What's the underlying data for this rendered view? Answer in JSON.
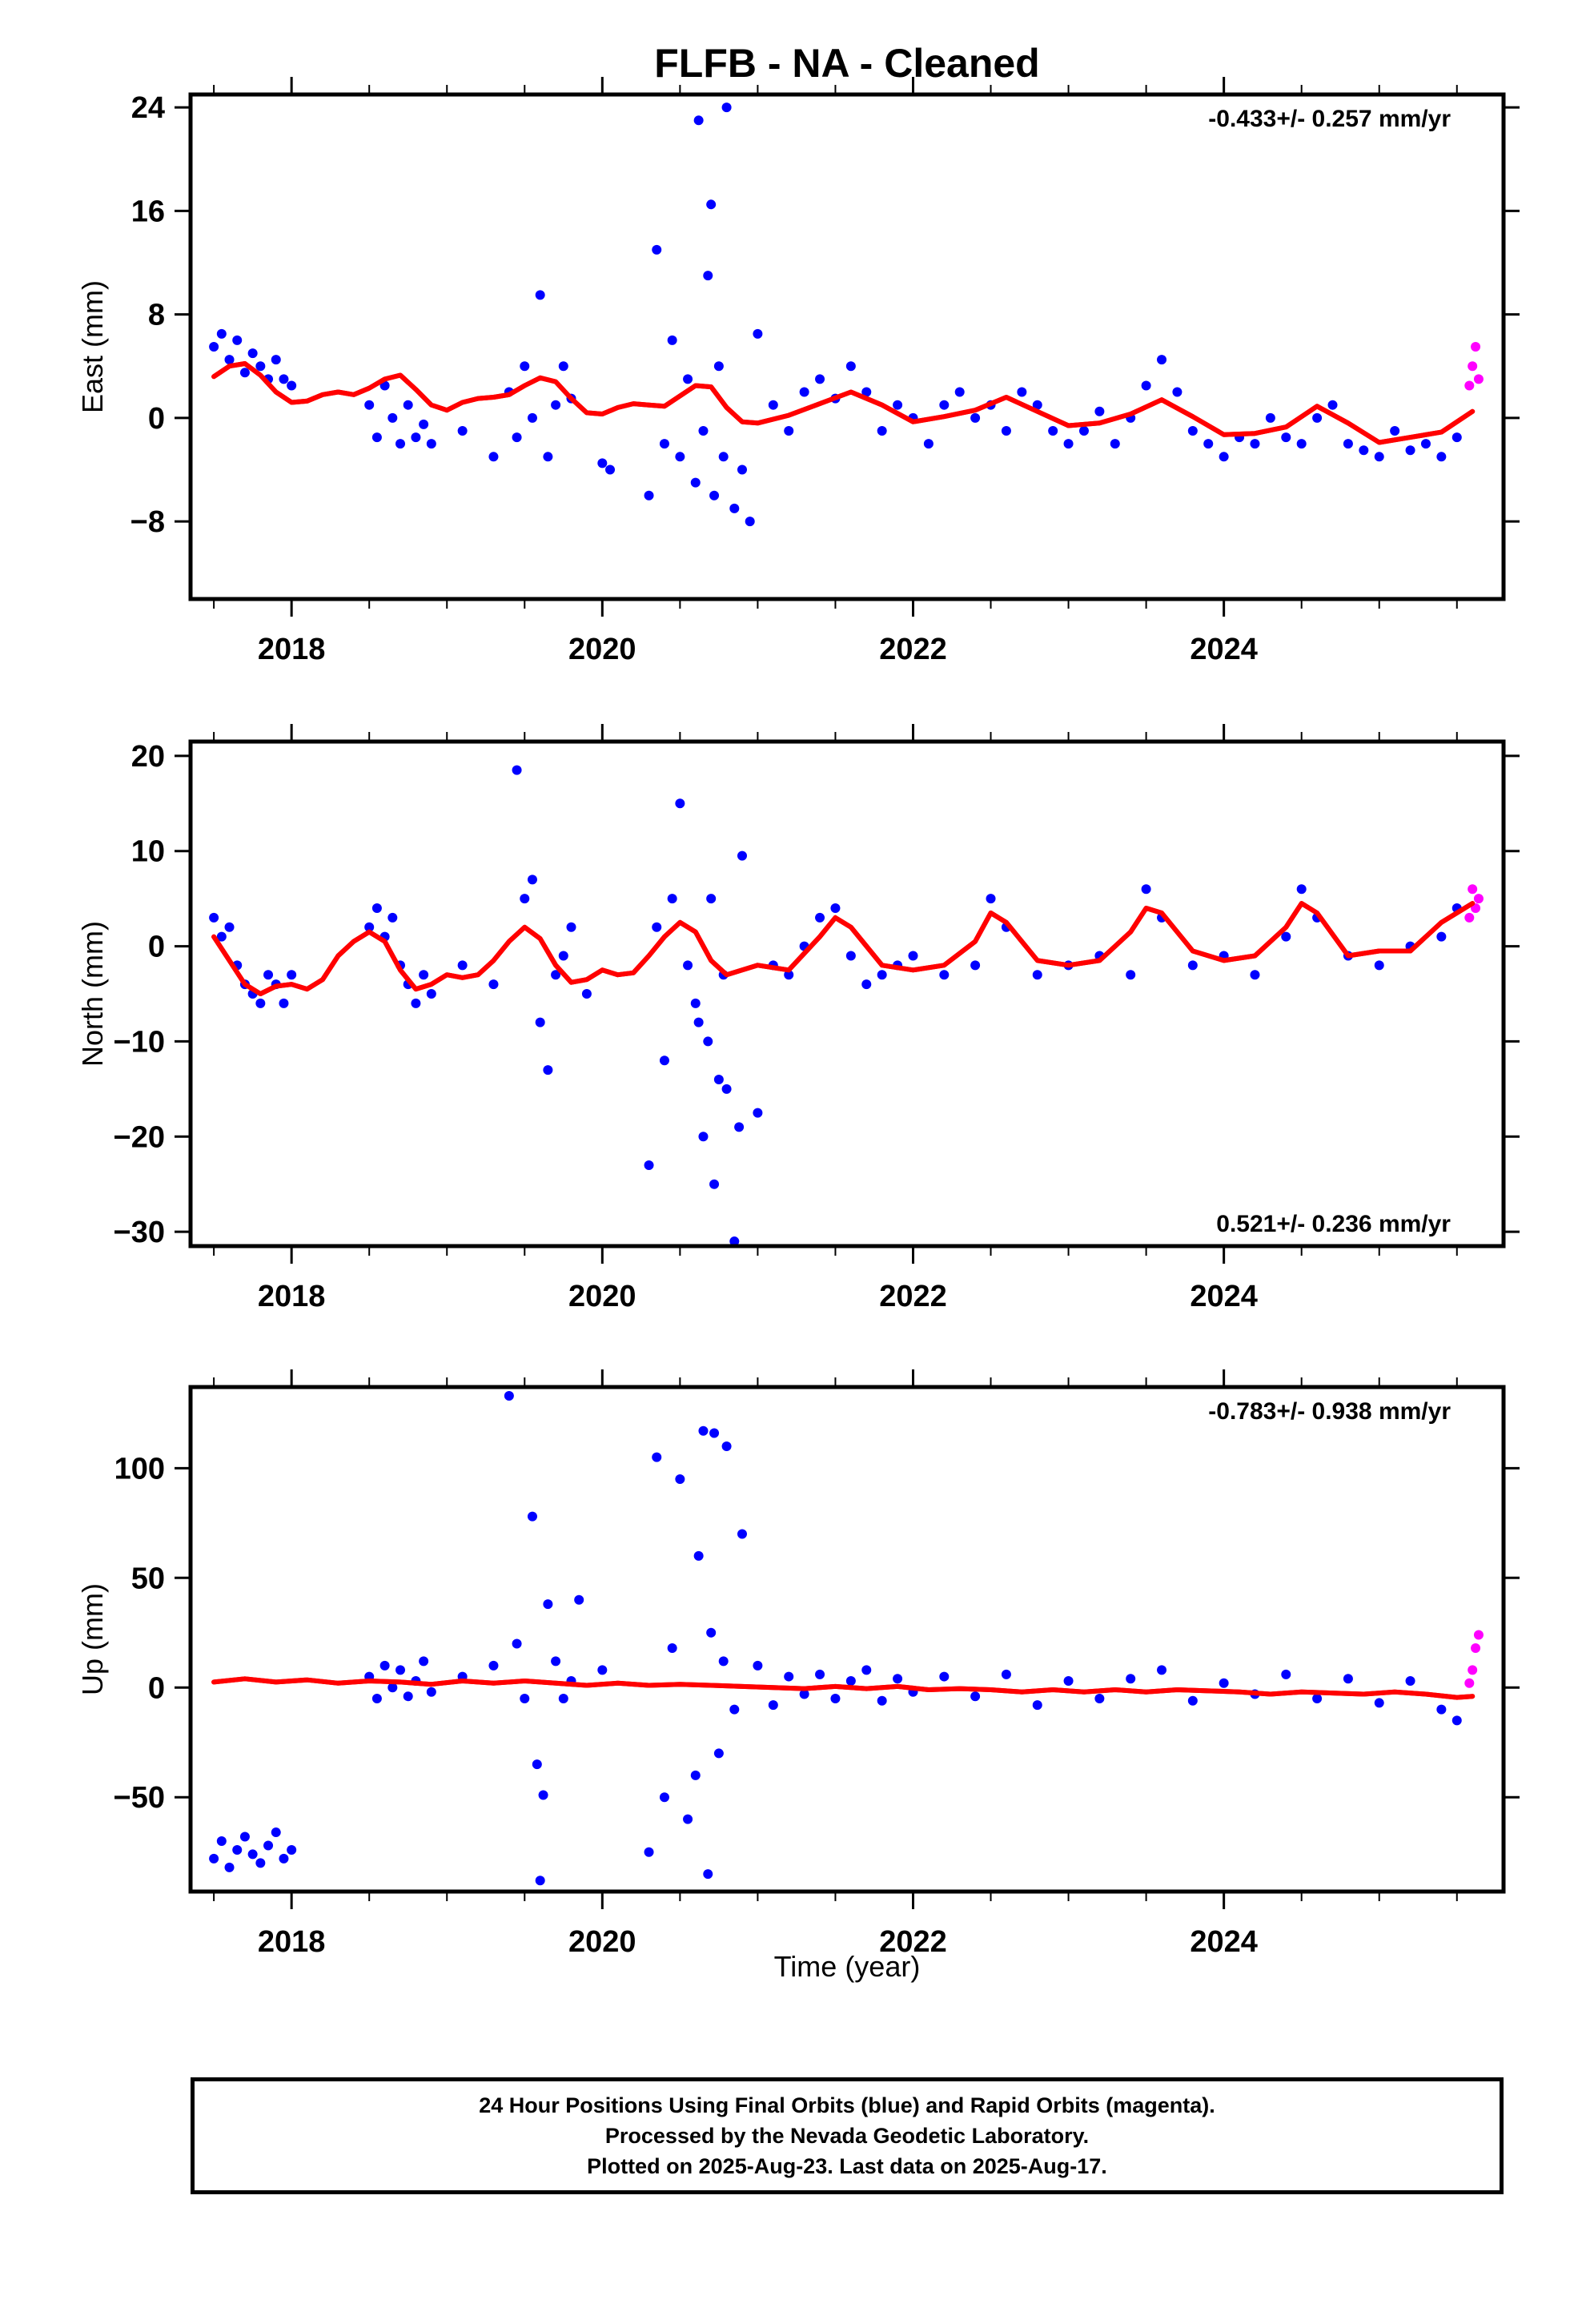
{
  "title": "FLFB  - NA - Cleaned",
  "xlabel": "Time (year)",
  "footer": {
    "line1": "24 Hour Positions Using Final Orbits (blue) and Rapid Orbits (magenta).",
    "line2": "Processed by the Nevada Geodetic Laboratory.",
    "line3": "Plotted on 2025-Aug-23. Last data on 2025-Aug-17."
  },
  "colors": {
    "final": "#0000ff",
    "rapid": "#ff00ff",
    "model": "#ff0000",
    "frame": "#000000"
  },
  "chart_data": [
    {
      "type": "scatter",
      "component": "east",
      "ylabel": "East (mm)",
      "rate": "-0.433+/- 0.257 mm/yr",
      "rate_position": "top-right",
      "xlim": [
        2017.35,
        2025.8
      ],
      "ylim": [
        -14,
        25
      ],
      "xticks": [
        2018,
        2020,
        2022,
        2024
      ],
      "xtick_labels": [
        "2018",
        "2020",
        "2022",
        "2024"
      ],
      "yticks": [
        24,
        16,
        8,
        0,
        -8
      ],
      "ytick_labels": [
        "24",
        "16",
        "8",
        "0",
        "−8"
      ],
      "series": [
        {
          "kind": "final",
          "x": [
            2017.5,
            2017.55,
            2017.6,
            2017.65,
            2017.7,
            2017.75,
            2017.8,
            2017.85,
            2017.9,
            2017.95,
            2018.0,
            2018.5,
            2018.55,
            2018.6,
            2018.65,
            2018.7,
            2018.75,
            2018.8,
            2018.85,
            2018.9,
            2019.1,
            2019.3,
            2019.4,
            2019.45,
            2019.5,
            2019.55,
            2019.6,
            2019.65,
            2019.7,
            2019.75,
            2019.8,
            2020.0,
            2020.05,
            2020.3,
            2020.35,
            2020.4,
            2020.45,
            2020.5,
            2020.55,
            2020.6,
            2020.62,
            2020.65,
            2020.68,
            2020.7,
            2020.72,
            2020.75,
            2020.78,
            2020.8,
            2020.85,
            2020.9,
            2020.95,
            2021.0,
            2021.1,
            2021.2,
            2021.3,
            2021.4,
            2021.5,
            2021.6,
            2021.7,
            2021.8,
            2021.9,
            2022.0,
            2022.1,
            2022.2,
            2022.3,
            2022.4,
            2022.5,
            2022.6,
            2022.7,
            2022.8,
            2022.9,
            2023.0,
            2023.1,
            2023.2,
            2023.3,
            2023.4,
            2023.5,
            2023.6,
            2023.7,
            2023.8,
            2023.9,
            2024.0,
            2024.1,
            2024.2,
            2024.3,
            2024.4,
            2024.5,
            2024.6,
            2024.7,
            2024.8,
            2024.9,
            2025.0,
            2025.1,
            2025.2,
            2025.3,
            2025.4,
            2025.5
          ],
          "y": [
            5.5,
            6.5,
            4.5,
            6,
            3.5,
            5,
            4,
            3,
            4.5,
            3,
            2.5,
            1,
            -1.5,
            2.5,
            0,
            -2,
            1,
            -1.5,
            -0.5,
            -2,
            -1,
            -3,
            2,
            -1.5,
            4,
            0,
            9.5,
            -3,
            1,
            4,
            1.5,
            -3.5,
            -4,
            -6,
            13,
            -2,
            6,
            -3,
            3,
            -5,
            23,
            -1,
            11,
            16.5,
            -6,
            4,
            -3,
            24,
            -7,
            -4,
            -8,
            6.5,
            1,
            -1,
            2,
            3,
            1.5,
            4,
            2,
            -1,
            1,
            0,
            -2,
            1,
            2,
            0,
            1,
            -1,
            2,
            1,
            -1,
            -2,
            -1,
            0.5,
            -2,
            0,
            2.5,
            4.5,
            2,
            -1,
            -2,
            -3,
            -1.5,
            -2,
            0,
            -1.5,
            -2,
            0,
            1,
            -2,
            -2.5,
            -3,
            -1,
            -2.5,
            -2,
            -3,
            -1.5
          ]
        },
        {
          "kind": "rapid",
          "x": [
            2025.58,
            2025.6,
            2025.62,
            2025.64
          ],
          "y": [
            2.5,
            4,
            5.5,
            3
          ]
        },
        {
          "kind": "model",
          "x": [
            2017.5,
            2017.6,
            2017.7,
            2017.8,
            2017.9,
            2018.0,
            2018.1,
            2018.2,
            2018.3,
            2018.4,
            2018.5,
            2018.6,
            2018.7,
            2018.8,
            2018.9,
            2019.0,
            2019.1,
            2019.2,
            2019.3,
            2019.4,
            2019.5,
            2019.6,
            2019.7,
            2019.8,
            2019.9,
            2020.0,
            2020.1,
            2020.2,
            2020.3,
            2020.4,
            2020.5,
            2020.6,
            2020.7,
            2020.8,
            2020.9,
            2021.0,
            2021.2,
            2021.4,
            2021.6,
            2021.8,
            2022.0,
            2022.2,
            2022.4,
            2022.6,
            2022.8,
            2023.0,
            2023.2,
            2023.4,
            2023.6,
            2023.8,
            2024.0,
            2024.2,
            2024.4,
            2024.6,
            2024.8,
            2025.0,
            2025.2,
            2025.4,
            2025.6
          ],
          "y": [
            3.2,
            4.0,
            4.2,
            3.3,
            2.0,
            1.2,
            1.3,
            1.8,
            2.0,
            1.8,
            2.3,
            3.0,
            3.3,
            2.2,
            1.0,
            0.6,
            1.2,
            1.5,
            1.6,
            1.8,
            2.5,
            3.1,
            2.8,
            1.5,
            0.4,
            0.3,
            0.8,
            1.1,
            1.0,
            0.9,
            1.7,
            2.5,
            2.4,
            0.8,
            -0.3,
            -0.4,
            0.2,
            1.1,
            2.0,
            1.0,
            -0.3,
            0.1,
            0.6,
            1.6,
            0.5,
            -0.6,
            -0.4,
            0.3,
            1.4,
            0.1,
            -1.3,
            -1.2,
            -0.7,
            0.9,
            -0.4,
            -1.9,
            -1.5,
            -1.1,
            0.5
          ]
        }
      ]
    },
    {
      "type": "scatter",
      "component": "north",
      "ylabel": "North (mm)",
      "rate": "0.521+/- 0.236 mm/yr",
      "rate_position": "bottom-right",
      "xlim": [
        2017.35,
        2025.8
      ],
      "ylim": [
        -31.5,
        21.5
      ],
      "xticks": [
        2018,
        2020,
        2022,
        2024
      ],
      "xtick_labels": [
        "2018",
        "2020",
        "2022",
        "2024"
      ],
      "yticks": [
        20,
        10,
        0,
        -10,
        -20,
        -30
      ],
      "ytick_labels": [
        "20",
        "10",
        "0",
        "−10",
        "−20",
        "−30"
      ],
      "series": [
        {
          "kind": "final",
          "x": [
            2017.5,
            2017.55,
            2017.6,
            2017.65,
            2017.7,
            2017.75,
            2017.8,
            2017.85,
            2017.9,
            2017.95,
            2018.0,
            2018.5,
            2018.55,
            2018.6,
            2018.65,
            2018.7,
            2018.75,
            2018.8,
            2018.85,
            2018.9,
            2019.1,
            2019.3,
            2019.45,
            2019.5,
            2019.55,
            2019.6,
            2019.65,
            2019.7,
            2019.75,
            2019.8,
            2019.9,
            2020.3,
            2020.35,
            2020.4,
            2020.45,
            2020.5,
            2020.55,
            2020.6,
            2020.62,
            2020.65,
            2020.68,
            2020.7,
            2020.72,
            2020.75,
            2020.78,
            2020.8,
            2020.85,
            2020.88,
            2020.9,
            2021.0,
            2021.1,
            2021.2,
            2021.3,
            2021.4,
            2021.5,
            2021.6,
            2021.7,
            2021.8,
            2021.9,
            2022.0,
            2022.2,
            2022.4,
            2022.5,
            2022.6,
            2022.8,
            2023.0,
            2023.2,
            2023.4,
            2023.5,
            2023.6,
            2023.8,
            2024.0,
            2024.2,
            2024.4,
            2024.5,
            2024.6,
            2024.8,
            2025.0,
            2025.2,
            2025.4,
            2025.5
          ],
          "y": [
            3,
            1,
            2,
            -2,
            -4,
            -5,
            -6,
            -3,
            -4,
            -6,
            -3,
            2,
            4,
            1,
            3,
            -2,
            -4,
            -6,
            -3,
            -5,
            -2,
            -4,
            18.5,
            5,
            7,
            -8,
            -13,
            -3,
            -1,
            2,
            -5,
            -23,
            2,
            -12,
            5,
            15,
            -2,
            -6,
            -8,
            -20,
            -10,
            5,
            -25,
            -14,
            -3,
            -15,
            -31,
            -19,
            9.5,
            -17.5,
            -2,
            -3,
            0,
            3,
            4,
            -1,
            -4,
            -3,
            -2,
            -1,
            -3,
            -2,
            5,
            2,
            -3,
            -2,
            -1,
            -3,
            6,
            3,
            -2,
            -1,
            -3,
            1,
            6,
            3,
            -1,
            -2,
            0,
            1,
            4
          ]
        },
        {
          "kind": "rapid",
          "x": [
            2025.58,
            2025.6,
            2025.62,
            2025.64
          ],
          "y": [
            3,
            6,
            4,
            5
          ]
        },
        {
          "kind": "model",
          "x": [
            2017.5,
            2017.6,
            2017.7,
            2017.8,
            2017.9,
            2018.0,
            2018.1,
            2018.2,
            2018.3,
            2018.4,
            2018.5,
            2018.6,
            2018.7,
            2018.8,
            2018.9,
            2019.0,
            2019.1,
            2019.2,
            2019.3,
            2019.4,
            2019.5,
            2019.6,
            2019.7,
            2019.8,
            2019.9,
            2020.0,
            2020.1,
            2020.2,
            2020.3,
            2020.4,
            2020.5,
            2020.6,
            2020.7,
            2020.8,
            2020.9,
            2021.0,
            2021.2,
            2021.4,
            2021.5,
            2021.6,
            2021.8,
            2022.0,
            2022.2,
            2022.4,
            2022.5,
            2022.6,
            2022.8,
            2023.0,
            2023.2,
            2023.4,
            2023.5,
            2023.6,
            2023.8,
            2024.0,
            2024.2,
            2024.4,
            2024.5,
            2024.6,
            2024.8,
            2025.0,
            2025.2,
            2025.4,
            2025.6
          ],
          "y": [
            1.0,
            -1.5,
            -4.0,
            -5.0,
            -4.2,
            -4.0,
            -4.5,
            -3.5,
            -1.0,
            0.5,
            1.5,
            0.5,
            -2.5,
            -4.5,
            -4.0,
            -3.0,
            -3.3,
            -3.0,
            -1.5,
            0.5,
            2.0,
            0.8,
            -2.0,
            -3.8,
            -3.5,
            -2.5,
            -3.0,
            -2.8,
            -1.0,
            1.0,
            2.5,
            1.5,
            -1.5,
            -3.0,
            -2.5,
            -2.0,
            -2.5,
            1.0,
            3.0,
            2.0,
            -2.0,
            -2.5,
            -2.0,
            0.5,
            3.5,
            2.5,
            -1.5,
            -2.0,
            -1.5,
            1.5,
            4.0,
            3.5,
            -0.5,
            -1.5,
            -1.0,
            2.0,
            4.5,
            3.5,
            -1.0,
            -0.5,
            -0.5,
            2.5,
            4.5
          ]
        }
      ]
    },
    {
      "type": "scatter",
      "component": "up",
      "ylabel": "Up (mm)",
      "rate": "-0.783+/- 0.938 mm/yr",
      "rate_position": "top-right",
      "xlim": [
        2017.35,
        2025.8
      ],
      "ylim": [
        -93,
        137
      ],
      "xticks": [
        2018,
        2020,
        2022,
        2024
      ],
      "xtick_labels": [
        "2018",
        "2020",
        "2022",
        "2024"
      ],
      "yticks": [
        100,
        50,
        0,
        -50
      ],
      "ytick_labels": [
        "100",
        "50",
        "0",
        "−50"
      ],
      "series": [
        {
          "kind": "final",
          "x": [
            2017.5,
            2017.55,
            2017.6,
            2017.65,
            2017.7,
            2017.75,
            2017.8,
            2017.85,
            2017.9,
            2017.95,
            2018.0,
            2018.5,
            2018.55,
            2018.6,
            2018.65,
            2018.7,
            2018.75,
            2018.8,
            2018.85,
            2018.9,
            2019.1,
            2019.3,
            2019.4,
            2019.45,
            2019.5,
            2019.55,
            2019.58,
            2019.6,
            2019.62,
            2019.65,
            2019.7,
            2019.75,
            2019.8,
            2019.85,
            2020.0,
            2020.3,
            2020.35,
            2020.4,
            2020.45,
            2020.5,
            2020.55,
            2020.6,
            2020.62,
            2020.65,
            2020.68,
            2020.7,
            2020.72,
            2020.75,
            2020.78,
            2020.8,
            2020.85,
            2020.9,
            2021.0,
            2021.1,
            2021.2,
            2021.3,
            2021.4,
            2021.5,
            2021.6,
            2021.7,
            2021.8,
            2021.9,
            2022.0,
            2022.2,
            2022.4,
            2022.6,
            2022.8,
            2023.0,
            2023.2,
            2023.4,
            2023.6,
            2023.8,
            2024.0,
            2024.2,
            2024.4,
            2024.6,
            2024.8,
            2025.0,
            2025.2,
            2025.4,
            2025.5
          ],
          "y": [
            -78,
            -70,
            -82,
            -74,
            -68,
            -76,
            -80,
            -72,
            -66,
            -78,
            -74,
            5,
            -5,
            10,
            0,
            8,
            -4,
            3,
            12,
            -2,
            5,
            10,
            133,
            20,
            -5,
            78,
            -35,
            -88,
            -49,
            38,
            12,
            -5,
            3,
            40,
            8,
            -75,
            105,
            -50,
            18,
            95,
            -60,
            -40,
            60,
            117,
            -85,
            25,
            116,
            -30,
            12,
            110,
            -10,
            70,
            10,
            -8,
            5,
            -3,
            6,
            -5,
            3,
            8,
            -6,
            4,
            -2,
            5,
            -4,
            6,
            -8,
            3,
            -5,
            4,
            8,
            -6,
            2,
            -3,
            6,
            -5,
            4,
            -7,
            3,
            -10,
            -15
          ]
        },
        {
          "kind": "rapid",
          "x": [
            2025.58,
            2025.6,
            2025.62,
            2025.64
          ],
          "y": [
            2,
            8,
            18,
            24
          ]
        },
        {
          "kind": "model",
          "x": [
            2017.5,
            2017.7,
            2017.9,
            2018.1,
            2018.3,
            2018.5,
            2018.7,
            2018.9,
            2019.1,
            2019.3,
            2019.5,
            2019.7,
            2019.9,
            2020.1,
            2020.3,
            2020.5,
            2020.7,
            2020.9,
            2021.1,
            2021.3,
            2021.5,
            2021.7,
            2021.9,
            2022.1,
            2022.3,
            2022.5,
            2022.7,
            2022.9,
            2023.1,
            2023.3,
            2023.5,
            2023.7,
            2023.9,
            2024.1,
            2024.3,
            2024.5,
            2024.7,
            2024.9,
            2025.1,
            2025.3,
            2025.5,
            2025.6
          ],
          "y": [
            2.5,
            4.0,
            2.5,
            3.5,
            2.0,
            3.0,
            2.5,
            1.5,
            3.0,
            2.0,
            3.0,
            2.0,
            1.0,
            2.0,
            1.0,
            1.5,
            1.0,
            0.5,
            0.0,
            -0.5,
            0.5,
            -0.5,
            0.5,
            -1.0,
            -0.5,
            -1.0,
            -2.0,
            -1.0,
            -2.0,
            -1.0,
            -2.0,
            -1.0,
            -1.5,
            -2.0,
            -3.0,
            -2.0,
            -2.5,
            -3.0,
            -2.0,
            -3.0,
            -4.5,
            -4.0
          ]
        }
      ]
    }
  ]
}
